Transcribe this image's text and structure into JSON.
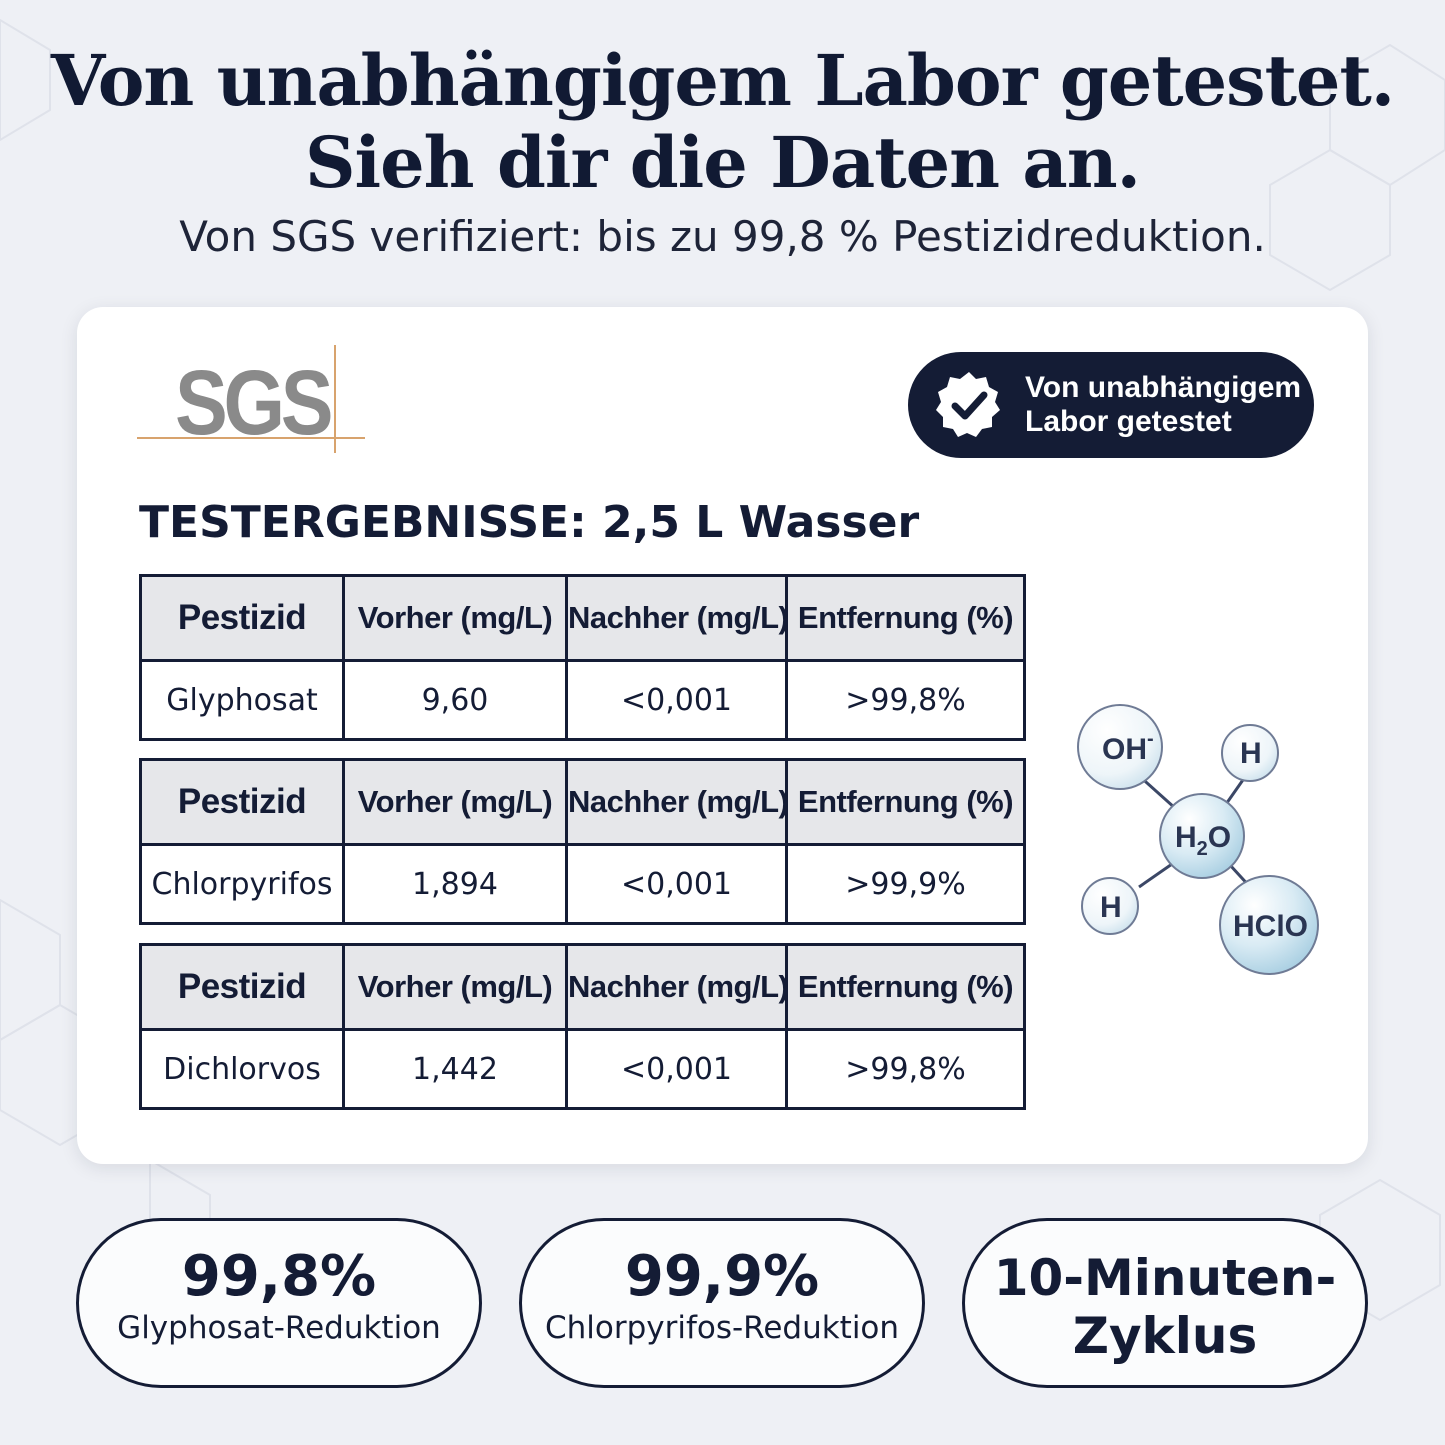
{
  "headline": {
    "line1": "Von unabhängigem Labor getestet.",
    "line2": "Sieh dir die Daten an."
  },
  "subheadline": "Von SGS verifiziert: bis zu 99,8 % Pestizidreduktion.",
  "card": {
    "logo_text": "SGS",
    "badge": {
      "icon": "checkmark-seal-icon",
      "line1": "Von unabhängigem",
      "line2": "Labor getestet"
    },
    "results_title": "TESTERGEBNISSE: 2,5 L Wasser",
    "tables": [
      {
        "headers": [
          "Pestizid",
          "Vorher (mg/L)",
          "Nachher (mg/L)",
          "Entfernung (%)"
        ],
        "row": [
          "Glyphosat",
          "9,60",
          "<0,001",
          ">99,8%"
        ]
      },
      {
        "headers": [
          "Pestizid",
          "Vorher (mg/L)",
          "Nachher (mg/L)",
          "Entfernung (%)"
        ],
        "row": [
          "Chlorpyrifos",
          "1,894",
          "<0,001",
          ">99,9%"
        ]
      },
      {
        "headers": [
          "Pestizid",
          "Vorher (mg/L)",
          "Nachher (mg/L)",
          "Entfernung (%)"
        ],
        "row": [
          "Dichlorvos",
          "1,442",
          "<0,001",
          ">99,8%"
        ]
      }
    ],
    "molecule": {
      "icon": "molecule-diagram-icon",
      "oh": "OH",
      "oh_sup": "-",
      "h_top": "H",
      "h2o_h": "H",
      "h2o_sub": "2",
      "h2o_o": "O",
      "h_bottom": "H",
      "hclo": "HClO"
    }
  },
  "stats": [
    {
      "value": "99,8%",
      "label": "Glyphosat-Reduktion"
    },
    {
      "value": "99,9%",
      "label": "Chlorpyrifos-Reduktion"
    },
    {
      "line1": "10-Minuten-",
      "line2": "Zyklus"
    }
  ],
  "colors": {
    "navy": "#141c35",
    "background": "#eef0f5",
    "card": "#ffffff",
    "table_header": "#e6e7ea",
    "sgs_gray": "#8a8a8a",
    "sgs_accent": "#d8a36d",
    "bubble_blue": "#bcdcec"
  }
}
